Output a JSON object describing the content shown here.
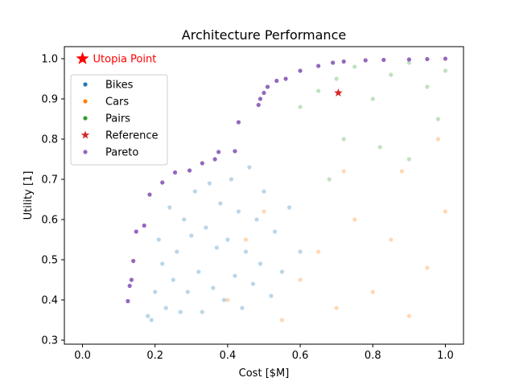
{
  "chart_data": {
    "type": "scatter",
    "title": "Architecture Performance",
    "xlabel": "Cost [$M]",
    "ylabel": "Utility [1]",
    "xlim": [
      -0.05,
      1.05
    ],
    "ylim": [
      0.29,
      1.03
    ],
    "xticks": [
      0.0,
      0.2,
      0.4,
      0.6,
      0.8,
      1.0
    ],
    "yticks": [
      0.3,
      0.4,
      0.5,
      0.6,
      0.7,
      0.8,
      0.9,
      1.0
    ],
    "xtick_labels": [
      "0.0",
      "0.2",
      "0.4",
      "0.6",
      "0.8",
      "1.0"
    ],
    "ytick_labels": [
      "0.3",
      "0.4",
      "0.5",
      "0.6",
      "0.7",
      "0.8",
      "0.9",
      "1.0"
    ],
    "grid": false,
    "legend_position": "upper-left",
    "legend": [
      {
        "label": "Bikes",
        "color": "#1f77b4",
        "marker": "dot"
      },
      {
        "label": "Cars",
        "color": "#ff7f0e",
        "marker": "dot"
      },
      {
        "label": "Pairs",
        "color": "#2ca02c",
        "marker": "dot"
      },
      {
        "label": "Reference",
        "color": "#d62728",
        "marker": "star"
      },
      {
        "label": "Pareto",
        "color": "#9467bd",
        "marker": "dot"
      }
    ],
    "series": [
      {
        "name": "Bikes",
        "color": "#1f77b4",
        "points": [
          [
            0.18,
            0.36
          ],
          [
            0.19,
            0.35
          ],
          [
            0.2,
            0.42
          ],
          [
            0.21,
            0.55
          ],
          [
            0.22,
            0.49
          ],
          [
            0.23,
            0.38
          ],
          [
            0.24,
            0.63
          ],
          [
            0.25,
            0.45
          ],
          [
            0.26,
            0.52
          ],
          [
            0.27,
            0.37
          ],
          [
            0.28,
            0.6
          ],
          [
            0.29,
            0.42
          ],
          [
            0.3,
            0.56
          ],
          [
            0.31,
            0.67
          ],
          [
            0.32,
            0.47
          ],
          [
            0.33,
            0.37
          ],
          [
            0.34,
            0.58
          ],
          [
            0.35,
            0.69
          ],
          [
            0.36,
            0.43
          ],
          [
            0.37,
            0.53
          ],
          [
            0.38,
            0.64
          ],
          [
            0.39,
            0.4
          ],
          [
            0.4,
            0.55
          ],
          [
            0.41,
            0.7
          ],
          [
            0.42,
            0.46
          ],
          [
            0.43,
            0.62
          ],
          [
            0.44,
            0.38
          ],
          [
            0.45,
            0.52
          ],
          [
            0.46,
            0.73
          ],
          [
            0.47,
            0.44
          ],
          [
            0.48,
            0.6
          ],
          [
            0.49,
            0.49
          ],
          [
            0.5,
            0.67
          ],
          [
            0.52,
            0.41
          ],
          [
            0.53,
            0.57
          ],
          [
            0.55,
            0.47
          ],
          [
            0.57,
            0.63
          ],
          [
            0.6,
            0.52
          ]
        ]
      },
      {
        "name": "Cars",
        "color": "#ff7f0e",
        "points": [
          [
            0.4,
            0.4
          ],
          [
            0.45,
            0.55
          ],
          [
            0.5,
            0.62
          ],
          [
            0.55,
            0.35
          ],
          [
            0.6,
            0.45
          ],
          [
            0.65,
            0.52
          ],
          [
            0.7,
            0.38
          ],
          [
            0.75,
            0.6
          ],
          [
            0.8,
            0.42
          ],
          [
            0.85,
            0.55
          ],
          [
            0.9,
            0.36
          ],
          [
            0.95,
            0.48
          ],
          [
            1.0,
            0.62
          ],
          [
            0.72,
            0.72
          ],
          [
            0.88,
            0.72
          ],
          [
            0.98,
            0.8
          ]
        ]
      },
      {
        "name": "Pairs",
        "color": "#2ca02c",
        "points": [
          [
            0.6,
            0.88
          ],
          [
            0.65,
            0.92
          ],
          [
            0.7,
            0.95
          ],
          [
            0.75,
            0.98
          ],
          [
            0.8,
            0.9
          ],
          [
            0.85,
            0.96
          ],
          [
            0.9,
            0.99
          ],
          [
            0.95,
            0.93
          ],
          [
            1.0,
            0.97
          ],
          [
            0.72,
            0.8
          ],
          [
            0.82,
            0.78
          ],
          [
            0.9,
            0.75
          ],
          [
            0.98,
            0.85
          ],
          [
            0.68,
            0.7
          ]
        ]
      },
      {
        "name": "Reference",
        "color": "#d62728",
        "points": [
          [
            0.705,
            0.915
          ]
        ]
      },
      {
        "name": "Pareto",
        "color": "#9467bd",
        "points": [
          [
            0.125,
            0.397
          ],
          [
            0.13,
            0.435
          ],
          [
            0.135,
            0.45
          ],
          [
            0.14,
            0.497
          ],
          [
            0.148,
            0.57
          ],
          [
            0.17,
            0.585
          ],
          [
            0.185,
            0.662
          ],
          [
            0.22,
            0.692
          ],
          [
            0.255,
            0.717
          ],
          [
            0.295,
            0.722
          ],
          [
            0.33,
            0.74
          ],
          [
            0.365,
            0.75
          ],
          [
            0.375,
            0.768
          ],
          [
            0.42,
            0.77
          ],
          [
            0.43,
            0.842
          ],
          [
            0.485,
            0.885
          ],
          [
            0.49,
            0.9
          ],
          [
            0.5,
            0.915
          ],
          [
            0.51,
            0.93
          ],
          [
            0.535,
            0.945
          ],
          [
            0.56,
            0.95
          ],
          [
            0.6,
            0.97
          ],
          [
            0.65,
            0.982
          ],
          [
            0.69,
            0.99
          ],
          [
            0.72,
            0.993
          ],
          [
            0.78,
            0.996
          ],
          [
            0.83,
            0.997
          ],
          [
            0.9,
            0.998
          ],
          [
            0.95,
            0.999
          ],
          [
            1.0,
            1.0
          ]
        ]
      }
    ],
    "annotation": {
      "label": "Utopia Point",
      "x": 0.0,
      "y": 1.0,
      "color": "#ff0000",
      "marker": "star"
    }
  }
}
